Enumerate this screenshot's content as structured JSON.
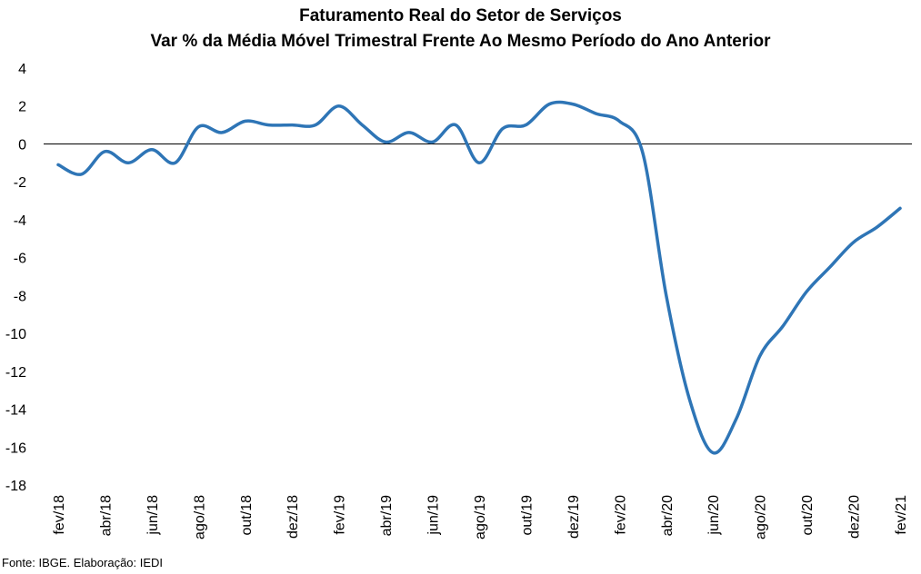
{
  "chart_data": {
    "type": "line",
    "title": "Faturamento Real do Setor de Serviços",
    "subtitle": "Var % da Média Móvel Trimestral Frente Ao Mesmo Período do Ano Anterior",
    "xlabel": "",
    "ylabel": "",
    "ylim": [
      -18,
      4
    ],
    "yticks": [
      4,
      2,
      0,
      -2,
      -4,
      -6,
      -8,
      -10,
      -12,
      -14,
      -16,
      -18
    ],
    "ytick_labels": [
      "4",
      "2",
      "0",
      "-2",
      "-4",
      "-6",
      "-8",
      "-10",
      "-12",
      "-14",
      "-16",
      "-18"
    ],
    "grid": false,
    "legend": "none",
    "x": [
      "fev/18",
      "mar/18",
      "abr/18",
      "mai/18",
      "jun/18",
      "jul/18",
      "ago/18",
      "set/18",
      "out/18",
      "nov/18",
      "dez/18",
      "jan/19",
      "fev/19",
      "mar/19",
      "abr/19",
      "mai/19",
      "jun/19",
      "jul/19",
      "ago/19",
      "set/19",
      "out/19",
      "nov/19",
      "dez/19",
      "jan/20",
      "fev/20",
      "mar/20",
      "abr/20",
      "mai/20",
      "jun/20",
      "jul/20",
      "ago/20",
      "set/20",
      "out/20",
      "nov/20",
      "dez/20",
      "jan/21",
      "fev/21"
    ],
    "xtick_labels": [
      "fev/18",
      "abr/18",
      "jun/18",
      "ago/18",
      "out/18",
      "dez/18",
      "fev/19",
      "abr/19",
      "jun/19",
      "ago/19",
      "out/19",
      "dez/19",
      "fev/20",
      "abr/20",
      "jun/20",
      "ago/20",
      "out/20",
      "dez/20",
      "fev/21"
    ],
    "series": [
      {
        "values": [
          -1.1,
          -1.6,
          -0.4,
          -1.0,
          -0.3,
          -1.0,
          0.9,
          0.6,
          1.2,
          1.0,
          1.0,
          1.0,
          2.0,
          1.0,
          0.1,
          0.6,
          0.1,
          1.0,
          -1.0,
          0.8,
          1.0,
          2.1,
          2.1,
          1.6,
          1.2,
          -0.5,
          -8.0,
          -13.5,
          -16.3,
          -14.5,
          -11.2,
          -9.6,
          -7.8,
          -6.5,
          -5.2,
          -4.4,
          -3.4
        ],
        "color": "#2e75b6"
      }
    ],
    "source": "Fonte: IBGE. Elaboração: IEDI"
  }
}
